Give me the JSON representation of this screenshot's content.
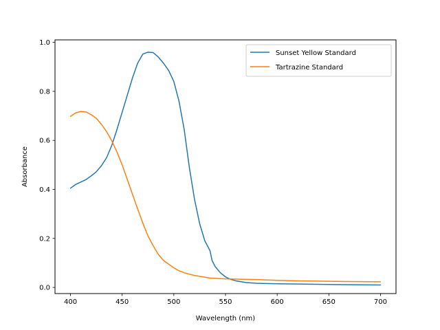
{
  "chart_data": {
    "type": "line",
    "title": "",
    "xlabel": "Wavelength (nm)",
    "ylabel": "Absorbance",
    "xlim": [
      385,
      715
    ],
    "ylim": [
      -0.025,
      1.01
    ],
    "xticks": [
      400,
      450,
      500,
      550,
      600,
      650,
      700
    ],
    "xtick_labels": [
      "400",
      "450",
      "500",
      "550",
      "600",
      "650",
      "700"
    ],
    "yticks": [
      0.0,
      0.2,
      0.4,
      0.6,
      0.8,
      1.0
    ],
    "ytick_labels": [
      "0.0",
      "0.2",
      "0.4",
      "0.6",
      "0.8",
      "1.0"
    ],
    "grid": false,
    "legend_position": "top-right",
    "series": [
      {
        "name": "Sunset Yellow Standard",
        "color": "#1f77b4",
        "x": [
          400,
          405,
          410,
          415,
          420,
          425,
          430,
          435,
          440,
          445,
          450,
          455,
          460,
          465,
          470,
          475,
          480,
          485,
          490,
          495,
          500,
          505,
          510,
          515,
          520,
          525,
          530,
          535,
          537,
          540,
          545,
          550,
          555,
          560,
          570,
          580,
          600,
          620,
          650,
          670,
          700
        ],
        "y": [
          0.405,
          0.42,
          0.43,
          0.44,
          0.455,
          0.472,
          0.497,
          0.53,
          0.58,
          0.645,
          0.715,
          0.785,
          0.855,
          0.915,
          0.952,
          0.96,
          0.958,
          0.94,
          0.915,
          0.885,
          0.84,
          0.76,
          0.645,
          0.49,
          0.36,
          0.26,
          0.19,
          0.15,
          0.11,
          0.085,
          0.06,
          0.043,
          0.033,
          0.027,
          0.02,
          0.017,
          0.015,
          0.014,
          0.012,
          0.011,
          0.01
        ]
      },
      {
        "name": "Tartrazine Standard",
        "color": "#ff7f0e",
        "x": [
          400,
          405,
          410,
          415,
          420,
          425,
          430,
          435,
          440,
          445,
          450,
          455,
          460,
          465,
          470,
          475,
          480,
          485,
          490,
          495,
          500,
          505,
          510,
          515,
          520,
          525,
          530,
          535,
          540,
          550,
          560,
          580,
          600,
          620,
          650,
          700
        ],
        "y": [
          0.698,
          0.712,
          0.718,
          0.716,
          0.705,
          0.69,
          0.665,
          0.635,
          0.598,
          0.552,
          0.5,
          0.44,
          0.38,
          0.32,
          0.262,
          0.21,
          0.17,
          0.135,
          0.11,
          0.095,
          0.08,
          0.068,
          0.06,
          0.054,
          0.049,
          0.045,
          0.042,
          0.038,
          0.037,
          0.035,
          0.034,
          0.032,
          0.029,
          0.027,
          0.025,
          0.023
        ]
      }
    ]
  }
}
